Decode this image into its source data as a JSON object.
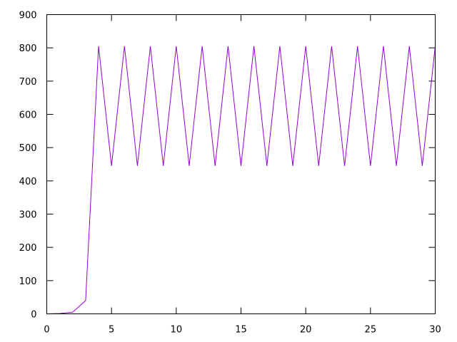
{
  "chart_data": {
    "type": "line",
    "title": "",
    "xlabel": "",
    "ylabel": "",
    "xlim": [
      0,
      30
    ],
    "ylim": [
      0,
      900
    ],
    "x_ticks": [
      0,
      5,
      10,
      15,
      20,
      25,
      30
    ],
    "y_ticks": [
      0,
      100,
      200,
      300,
      400,
      500,
      600,
      700,
      800,
      900
    ],
    "grid": false,
    "legend": "none",
    "series": [
      {
        "color": "#9400d3",
        "x": [
          0,
          1,
          2,
          3,
          4,
          5,
          6,
          7,
          8,
          9,
          10,
          11,
          12,
          13,
          14,
          15,
          16,
          17,
          18,
          19,
          20,
          21,
          22,
          23,
          24,
          25,
          26,
          27,
          28,
          29,
          30
        ],
        "y": [
          0,
          1,
          5,
          40,
          805,
          445,
          805,
          445,
          805,
          445,
          805,
          445,
          805,
          445,
          805,
          445,
          805,
          445,
          805,
          445,
          805,
          445,
          805,
          445,
          805,
          445,
          805,
          445,
          805,
          445,
          805
        ]
      }
    ]
  }
}
